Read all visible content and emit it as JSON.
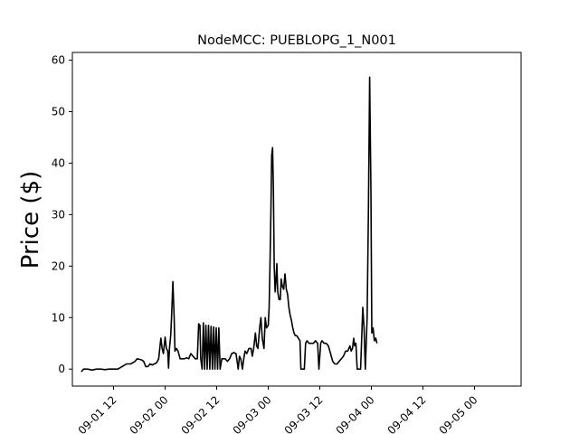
{
  "chart_data": {
    "type": "line",
    "title": "NodeMCC: PUEBLOPG_1_N001",
    "xlabel": "",
    "ylabel": "Price ($)",
    "ylim": [
      -3.3,
      61.5
    ],
    "xlim_hours": [
      -3.3,
      74.0
    ],
    "grid": false,
    "legend": "none",
    "line_color": "#000000",
    "x_ticks": [
      {
        "hour": 12,
        "label": "09-01 12"
      },
      {
        "hour": 24,
        "label": "09-02 00"
      },
      {
        "hour": 36,
        "label": "09-02 12"
      },
      {
        "hour": 48,
        "label": "09-03 00"
      },
      {
        "hour": 60,
        "label": "09-03 12"
      },
      {
        "hour": 72,
        "label": "09-04 00"
      },
      {
        "hour": 84,
        "label": "09-04 12"
      },
      {
        "hour": 96,
        "label": "09-05 00"
      }
    ],
    "y_ticks": [
      0,
      10,
      20,
      30,
      40,
      50,
      60
    ],
    "series": [
      {
        "points": [
          [
            4.5,
            -0.5
          ],
          [
            5.0,
            0.0
          ],
          [
            6.0,
            0.0
          ],
          [
            7.0,
            -0.2
          ],
          [
            8.0,
            0.0
          ],
          [
            9.0,
            0.0
          ],
          [
            10.0,
            -0.1
          ],
          [
            11.0,
            0.0
          ],
          [
            12.0,
            0.0
          ],
          [
            13.0,
            0.0
          ],
          [
            14.0,
            0.5
          ],
          [
            15.0,
            1.0
          ],
          [
            16.0,
            1.0
          ],
          [
            17.0,
            1.5
          ],
          [
            17.5,
            2.0
          ],
          [
            18.5,
            1.8
          ],
          [
            19.0,
            1.5
          ],
          [
            19.5,
            0.5
          ],
          [
            20.0,
            0.5
          ],
          [
            20.5,
            1.0
          ],
          [
            21.0,
            0.8
          ],
          [
            21.5,
            1.0
          ],
          [
            22.0,
            1.2
          ],
          [
            22.5,
            2.0
          ],
          [
            23.0,
            6.0
          ],
          [
            23.3,
            4.0
          ],
          [
            23.6,
            3.0
          ],
          [
            24.0,
            6.2
          ],
          [
            24.3,
            4.0
          ],
          [
            24.6,
            3.5
          ],
          [
            24.8,
            0.2
          ],
          [
            25.0,
            4.0
          ],
          [
            25.3,
            6.5
          ],
          [
            25.5,
            10.0
          ],
          [
            25.8,
            17.0
          ],
          [
            26.1,
            10.0
          ],
          [
            26.3,
            3.5
          ],
          [
            26.6,
            4.0
          ],
          [
            27.0,
            3.5
          ],
          [
            27.5,
            2.0
          ],
          [
            28.0,
            2.0
          ],
          [
            28.5,
            2.0
          ],
          [
            29.0,
            2.2
          ],
          [
            29.5,
            2.0
          ],
          [
            30.0,
            3.0
          ],
          [
            30.5,
            2.5
          ],
          [
            31.0,
            2.0
          ],
          [
            31.5,
            2.0
          ],
          [
            31.8,
            8.8
          ],
          [
            32.1,
            8.5
          ],
          [
            32.3,
            2.0
          ],
          [
            32.6,
            0.0
          ],
          [
            32.9,
            9.0
          ],
          [
            33.2,
            0.0
          ],
          [
            33.5,
            8.5
          ],
          [
            33.8,
            0.0
          ],
          [
            34.1,
            8.5
          ],
          [
            34.4,
            0.0
          ],
          [
            34.7,
            8.3
          ],
          [
            35.0,
            0.0
          ],
          [
            35.3,
            8.2
          ],
          [
            35.6,
            0.0
          ],
          [
            35.9,
            8.0
          ],
          [
            36.2,
            0.0
          ],
          [
            36.5,
            8.0
          ],
          [
            36.8,
            0.0
          ],
          [
            37.2,
            2.0
          ],
          [
            38.0,
            2.0
          ],
          [
            38.5,
            1.5
          ],
          [
            39.0,
            2.0
          ],
          [
            39.5,
            3.0
          ],
          [
            40.0,
            3.2
          ],
          [
            40.5,
            3.0
          ],
          [
            41.0,
            0.0
          ],
          [
            41.3,
            2.5
          ],
          [
            41.6,
            2.0
          ],
          [
            42.0,
            0.0
          ],
          [
            42.3,
            2.0
          ],
          [
            42.6,
            3.5
          ],
          [
            43.0,
            3.0
          ],
          [
            43.5,
            4.0
          ],
          [
            44.0,
            4.0
          ],
          [
            44.3,
            2.5
          ],
          [
            44.6,
            4.0
          ],
          [
            45.0,
            7.0
          ],
          [
            45.3,
            4.5
          ],
          [
            45.6,
            4.0
          ],
          [
            46.0,
            8.0
          ],
          [
            46.3,
            10.0
          ],
          [
            46.6,
            6.0
          ],
          [
            47.0,
            4.0
          ],
          [
            47.3,
            10.0
          ],
          [
            47.6,
            8.0
          ],
          [
            48.0,
            8.5
          ],
          [
            48.2,
            12.0
          ],
          [
            48.4,
            20.0
          ],
          [
            48.6,
            30.0
          ],
          [
            48.8,
            41.5
          ],
          [
            49.0,
            43.0
          ],
          [
            49.2,
            35.0
          ],
          [
            49.4,
            20.0
          ],
          [
            49.6,
            15.0
          ],
          [
            49.8,
            17.0
          ],
          [
            50.0,
            20.5
          ],
          [
            50.2,
            15.0
          ],
          [
            50.5,
            13.5
          ],
          [
            50.8,
            13.5
          ],
          [
            51.0,
            17.5
          ],
          [
            51.3,
            16.0
          ],
          [
            51.6,
            15.5
          ],
          [
            51.9,
            18.5
          ],
          [
            52.2,
            15.5
          ],
          [
            52.5,
            14.5
          ],
          [
            52.8,
            12.0
          ],
          [
            53.1,
            10.5
          ],
          [
            53.4,
            9.5
          ],
          [
            53.7,
            8.0
          ],
          [
            54.0,
            7.0
          ],
          [
            54.3,
            6.5
          ],
          [
            54.6,
            6.5
          ],
          [
            55.0,
            6.0
          ],
          [
            55.4,
            5.5
          ],
          [
            55.6,
            0.0
          ],
          [
            56.0,
            0.0
          ],
          [
            56.4,
            0.0
          ],
          [
            56.7,
            5.0
          ],
          [
            57.0,
            5.5
          ],
          [
            57.5,
            5.0
          ],
          [
            58.0,
            5.0
          ],
          [
            58.5,
            5.0
          ],
          [
            59.0,
            5.5
          ],
          [
            59.5,
            5.0
          ],
          [
            59.8,
            0.0
          ],
          [
            60.2,
            5.0
          ],
          [
            60.5,
            5.5
          ],
          [
            61.0,
            5.0
          ],
          [
            61.5,
            5.0
          ],
          [
            62.0,
            4.5
          ],
          [
            62.5,
            3.0
          ],
          [
            63.0,
            1.5
          ],
          [
            63.5,
            1.0
          ],
          [
            64.0,
            1.0
          ],
          [
            64.5,
            1.5
          ],
          [
            65.0,
            2.0
          ],
          [
            65.5,
            2.5
          ],
          [
            66.0,
            3.5
          ],
          [
            66.5,
            3.5
          ],
          [
            67.0,
            4.5
          ],
          [
            67.3,
            3.5
          ],
          [
            67.6,
            4.0
          ],
          [
            67.9,
            6.0
          ],
          [
            68.1,
            4.5
          ],
          [
            68.4,
            5.0
          ],
          [
            68.7,
            0.0
          ],
          [
            69.0,
            0.0
          ],
          [
            69.5,
            0.0
          ],
          [
            70.0,
            12.0
          ],
          [
            70.3,
            8.0
          ],
          [
            70.6,
            0.0
          ],
          [
            71.0,
            10.0
          ],
          [
            71.3,
            30.0
          ],
          [
            71.6,
            56.7
          ],
          [
            71.9,
            35.0
          ],
          [
            72.1,
            7.0
          ],
          [
            72.4,
            8.0
          ],
          [
            72.7,
            5.5
          ],
          [
            73.0,
            6.0
          ],
          [
            73.3,
            5.0
          ]
        ]
      }
    ]
  }
}
